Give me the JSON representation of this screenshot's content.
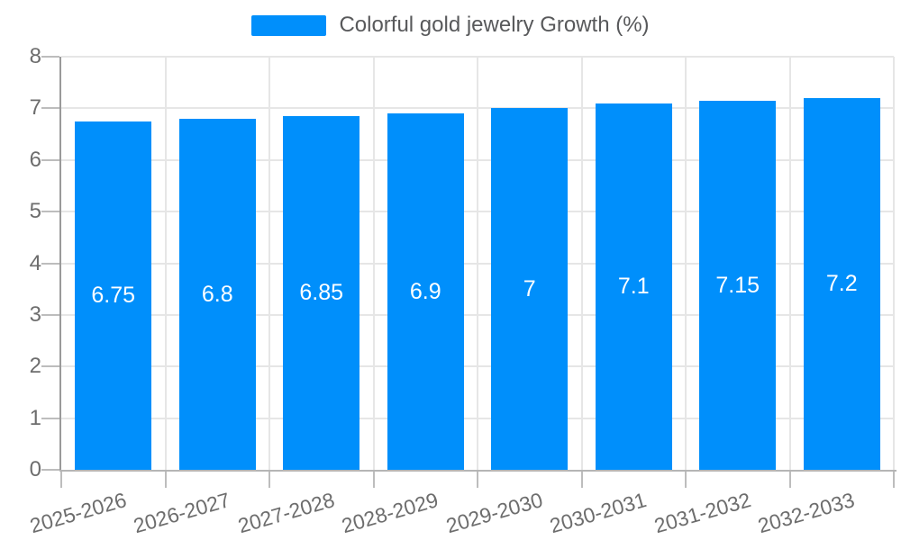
{
  "legend": {
    "label": "Colorful gold jewelry Growth (%)"
  },
  "chart_data": {
    "type": "bar",
    "title": "Colorful gold jewelry Growth (%)",
    "categories": [
      "2025-2026",
      "2026-2027",
      "2027-2028",
      "2028-2029",
      "2029-2030",
      "2030-2031",
      "2031-2032",
      "2032-2033"
    ],
    "series": [
      {
        "name": "Colorful gold jewelry Growth (%)",
        "values": [
          6.75,
          6.8,
          6.85,
          6.9,
          7,
          7.1,
          7.15,
          7.2
        ]
      }
    ],
    "data_labels": [
      "6.75",
      "6.8",
      "6.85",
      "6.9",
      "7",
      "7.1",
      "7.15",
      "7.2"
    ],
    "xlabel": "",
    "ylabel": "",
    "ylim": [
      0,
      8
    ],
    "yticks": [
      0,
      1,
      2,
      3,
      4,
      5,
      6,
      7,
      8
    ],
    "grid": "both",
    "legend_position": "top"
  },
  "colors": {
    "bar": "#008FFB",
    "bar_label": "#ffffff",
    "grid": "#e6e6e6",
    "y_axis_border": "#9a9a9a",
    "x_axis_border": "#b5b5b5",
    "tick": "#bdbdbd",
    "axis_label": "#6d6d6d",
    "legend_text": "#58595b"
  }
}
